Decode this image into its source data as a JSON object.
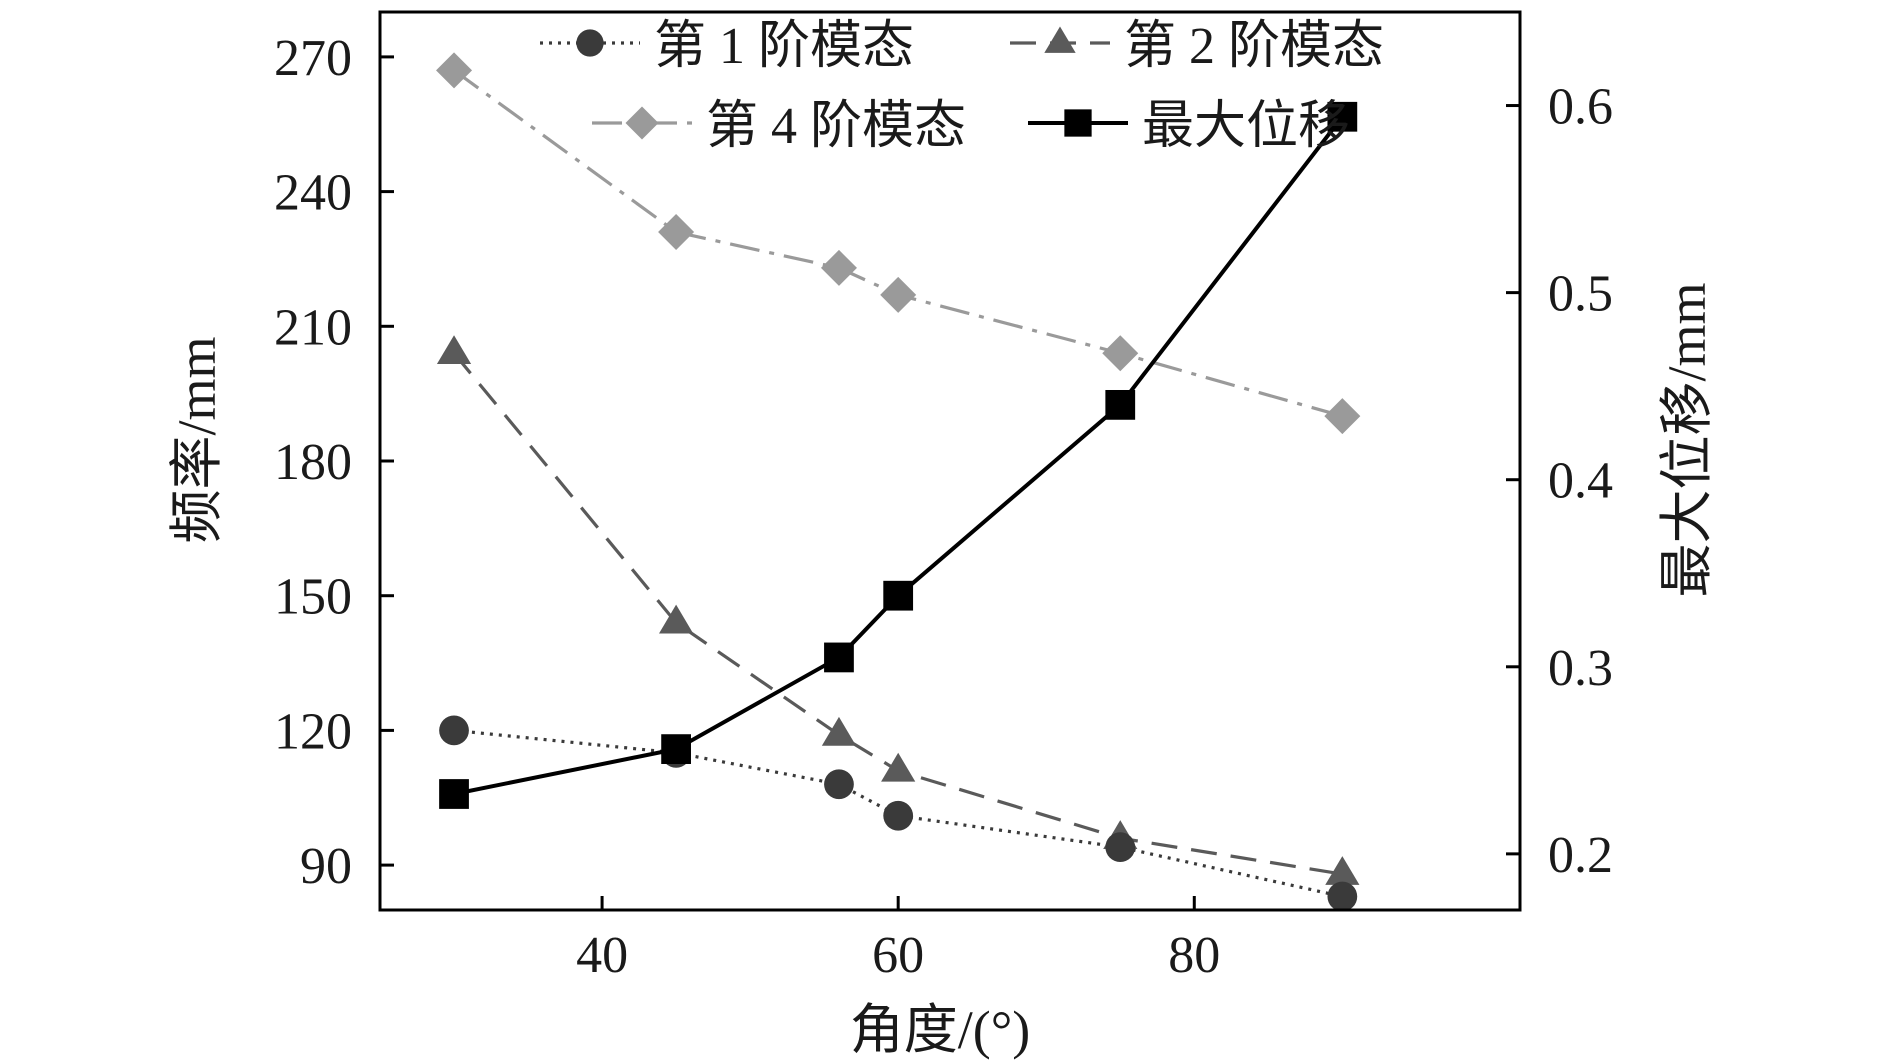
{
  "chart_data": {
    "type": "line",
    "xlabel": "角度/(°)",
    "ylabel_left": "频率/mm",
    "ylabel_right": "最大位移/mm",
    "xlim": [
      25,
      102
    ],
    "ylim_left": [
      80,
      280
    ],
    "ylim_right": [
      0.17,
      0.65
    ],
    "x_ticks": [
      40,
      60,
      80
    ],
    "y_left_ticks": [
      90,
      120,
      150,
      180,
      210,
      240,
      270
    ],
    "y_right_ticks": [
      0.2,
      0.3,
      0.4,
      0.5,
      0.6
    ],
    "y_right_tick_labels": [
      "0.2",
      "0.3",
      "0.4",
      "0.5",
      "0.6"
    ],
    "grid": false,
    "legend_position": "top",
    "series": [
      {
        "name": "第 1 阶模态",
        "axis": "left",
        "marker": "circle",
        "dash": "dotted",
        "color": "#3a3a3a",
        "x": [
          30,
          45,
          56,
          60,
          75,
          90
        ],
        "y": [
          120,
          115,
          108,
          101,
          94,
          83
        ]
      },
      {
        "name": "第 2 阶模态",
        "axis": "left",
        "marker": "triangle",
        "dash": "dashed",
        "color": "#5a5a5a",
        "x": [
          30,
          45,
          56,
          60,
          75,
          90
        ],
        "y": [
          204,
          144,
          119,
          111,
          96,
          88
        ]
      },
      {
        "name": "第 4 阶模态",
        "axis": "left",
        "marker": "diamond",
        "dash": "dashdot",
        "color": "#9a9a9a",
        "x": [
          30,
          45,
          56,
          60,
          75,
          90
        ],
        "y": [
          267,
          231,
          223,
          217,
          204,
          190
        ]
      },
      {
        "name": "最大位移",
        "axis": "right",
        "marker": "square",
        "dash": "solid",
        "color": "#000000",
        "x": [
          30,
          45,
          56,
          60,
          75,
          90
        ],
        "y": [
          0.232,
          0.256,
          0.305,
          0.338,
          0.44,
          0.594
        ]
      }
    ]
  }
}
